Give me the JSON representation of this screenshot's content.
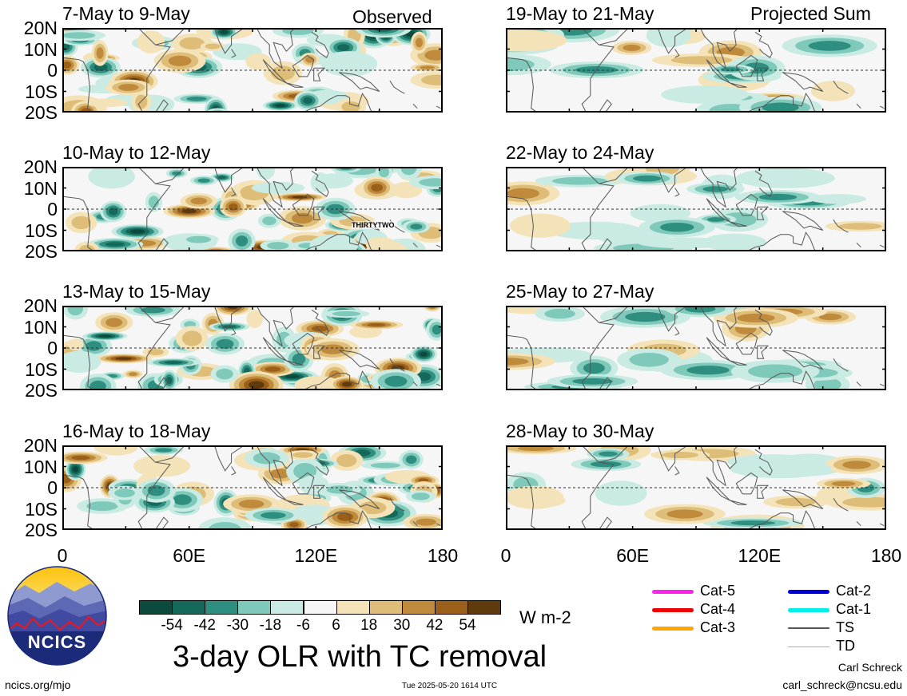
{
  "chart_data": {
    "type": "heatmap",
    "title": "3-day OLR with TC removal",
    "units": "W m-2",
    "column_headers": [
      "Observed",
      "Projected Sum"
    ],
    "xlim": [
      0,
      180
    ],
    "ylim": [
      -20,
      20
    ],
    "x_ticks": [
      "0",
      "60E",
      "120E",
      "180"
    ],
    "y_ticks": [
      "20N",
      "10N",
      "0",
      "10S",
      "20S"
    ],
    "colorbar_ticks": [
      "-54",
      "-42",
      "-30",
      "-18",
      "-6",
      "6",
      "18",
      "30",
      "42",
      "54"
    ],
    "colorbar_colors": [
      "#0c4a3e",
      "#14695a",
      "#2e8e80",
      "#7fc9ba",
      "#c9ebe3",
      "#f6f6f6",
      "#f4e3b8",
      "#ddbd77",
      "#c08a3c",
      "#9a5f18",
      "#5e3a0c"
    ],
    "panels": [
      {
        "period": "7-May to 9-May",
        "column": "Observed",
        "header": "Observed",
        "annotation": ""
      },
      {
        "period": "10-May to 12-May",
        "column": "Observed",
        "header": "",
        "annotation": "THIRTYTWO"
      },
      {
        "period": "13-May to 15-May",
        "column": "Observed",
        "header": "",
        "annotation": ""
      },
      {
        "period": "16-May to 18-May",
        "column": "Observed",
        "header": "",
        "annotation": ""
      },
      {
        "period": "19-May to 21-May",
        "column": "Projected Sum",
        "header": "Projected Sum",
        "annotation": ""
      },
      {
        "period": "22-May to 24-May",
        "column": "Projected Sum",
        "header": "",
        "annotation": ""
      },
      {
        "period": "25-May to 27-May",
        "column": "Projected Sum",
        "header": "",
        "annotation": ""
      },
      {
        "period": "28-May to 30-May",
        "column": "Projected Sum",
        "header": "",
        "annotation": ""
      }
    ],
    "tc_legend": [
      {
        "label": "Cat-5",
        "color": "#ff22ee"
      },
      {
        "label": "Cat-4",
        "color": "#ee0000"
      },
      {
        "label": "Cat-3",
        "color": "#ffa500"
      },
      {
        "label": "Cat-2",
        "color": "#0000dd"
      },
      {
        "label": "Cat-1",
        "color": "#00eeee"
      },
      {
        "label": "TS",
        "color": "#555555"
      },
      {
        "label": "TD",
        "color": "#aaaaaa"
      }
    ]
  },
  "logo": {
    "text": "NCICS"
  },
  "footer": {
    "left": "ncics.org/mjo",
    "center": "Tue 2025-05-20 1614 UTC",
    "author": "Carl Schreck",
    "email": "carl_schreck@ncsu.edu"
  }
}
